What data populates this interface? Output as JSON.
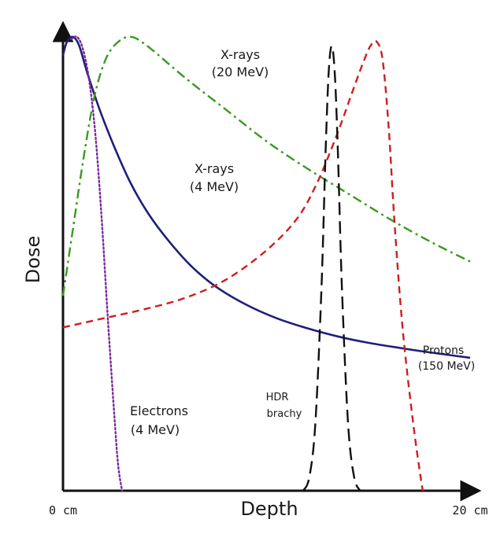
{
  "chart_data": {
    "type": "line",
    "xlabel": "Depth",
    "ylabel": "Dose",
    "xlim": [
      0,
      20
    ],
    "ylim": [
      0,
      100
    ],
    "x_tick_labels": [
      "0 cm",
      "20 cm"
    ],
    "grid": false,
    "legend": "none",
    "series": [
      {
        "name": "X-rays (4 MeV)",
        "label_lines": [
          "X-rays",
          "(4 MeV)"
        ],
        "color": "#1f1f7a",
        "style": "solid",
        "points": [
          [
            0,
            96
          ],
          [
            0.2,
            99
          ],
          [
            0.5,
            100
          ],
          [
            0.8,
            98
          ],
          [
            1.2,
            92
          ],
          [
            1.8,
            84
          ],
          [
            2.5,
            76
          ],
          [
            3.3,
            68
          ],
          [
            4.2,
            61
          ],
          [
            5.2,
            55
          ],
          [
            6.3,
            49.5
          ],
          [
            7.5,
            45
          ],
          [
            9,
            41
          ],
          [
            10.5,
            38
          ],
          [
            12,
            35.8
          ],
          [
            13.5,
            34
          ],
          [
            15,
            32.6
          ],
          [
            16.5,
            31.5
          ],
          [
            18,
            30.5
          ],
          [
            20,
            29.3
          ]
        ]
      },
      {
        "name": "X-rays (20 MeV)",
        "label_lines": [
          "X-rays",
          "(20 MeV)"
        ],
        "color": "#3a9a22",
        "style": "dashdot",
        "points": [
          [
            0,
            43
          ],
          [
            0.5,
            58
          ],
          [
            1,
            73
          ],
          [
            1.5,
            86
          ],
          [
            2,
            94
          ],
          [
            2.5,
            98
          ],
          [
            3.2,
            100
          ],
          [
            4,
            98.5
          ],
          [
            6,
            91
          ],
          [
            8,
            84
          ],
          [
            10,
            77
          ],
          [
            12,
            71
          ],
          [
            14,
            65.5
          ],
          [
            16,
            60
          ],
          [
            18,
            55
          ],
          [
            20,
            50.5
          ]
        ]
      },
      {
        "name": "Electrons (4 MeV)",
        "label_lines": [
          "Electrons",
          "(4 MeV)"
        ],
        "color": "#7a2a9a",
        "style": "dotted",
        "points": [
          [
            0.4,
            99.5
          ],
          [
            0.7,
            100
          ],
          [
            1,
            97
          ],
          [
            1.3,
            90
          ],
          [
            1.6,
            78
          ],
          [
            1.9,
            60
          ],
          [
            2.2,
            38
          ],
          [
            2.5,
            18
          ],
          [
            2.7,
            6
          ],
          [
            2.9,
            0
          ]
        ]
      },
      {
        "name": "Protons (150 MeV)",
        "label_lines": [
          "Protons",
          "(150 MeV)"
        ],
        "color": "#cc1f1f",
        "style": "dashed",
        "points": [
          [
            0,
            36
          ],
          [
            2,
            38
          ],
          [
            4,
            40
          ],
          [
            6,
            42.5
          ],
          [
            8,
            46.5
          ],
          [
            10,
            53
          ],
          [
            11.5,
            60
          ],
          [
            12.5,
            68
          ],
          [
            13.5,
            79
          ],
          [
            14.3,
            89
          ],
          [
            14.8,
            95
          ],
          [
            15.1,
            98
          ],
          [
            15.4,
            99
          ],
          [
            15.7,
            95
          ],
          [
            16,
            80
          ],
          [
            16.3,
            58
          ],
          [
            16.7,
            35
          ],
          [
            17.2,
            15
          ],
          [
            17.6,
            2
          ],
          [
            17.7,
            0
          ]
        ]
      },
      {
        "name": "HDR brachy",
        "label_lines": [
          "HDR",
          "brachy"
        ],
        "color": "#111111",
        "style": "longdash",
        "points": [
          [
            11.8,
            0
          ],
          [
            12.1,
            3
          ],
          [
            12.4,
            15
          ],
          [
            12.7,
            45
          ],
          [
            12.9,
            75
          ],
          [
            13.05,
            92
          ],
          [
            13.2,
            98
          ],
          [
            13.35,
            92
          ],
          [
            13.5,
            75
          ],
          [
            13.7,
            45
          ],
          [
            14,
            15
          ],
          [
            14.3,
            3
          ],
          [
            14.6,
            0
          ]
        ]
      }
    ]
  }
}
